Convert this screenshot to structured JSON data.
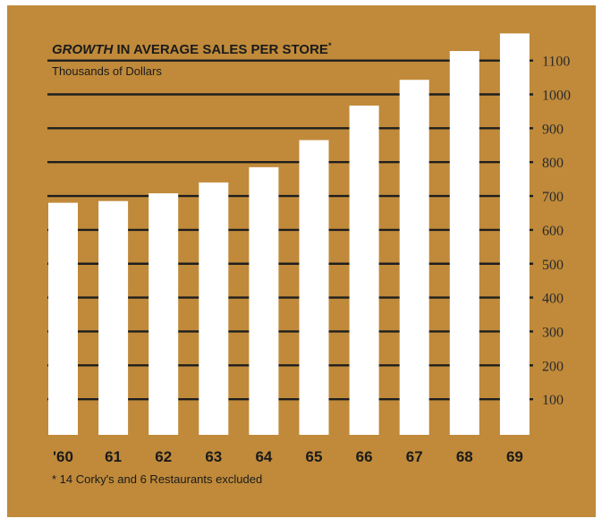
{
  "chart_data": {
    "type": "bar",
    "title_emphasis": "GROWTH",
    "title_rest": " IN AVERAGE SALES PER STORE",
    "title_marker": "*",
    "subtitle": "Thousands of Dollars",
    "footnote": "* 14 Corky's and 6 Restaurants excluded",
    "categories": [
      "'60",
      "61",
      "62",
      "63",
      "64",
      "65",
      "66",
      "67",
      "68",
      "69"
    ],
    "values": [
      680,
      685,
      708,
      740,
      785,
      865,
      967,
      1043,
      1128,
      1180
    ],
    "yticks": [
      100,
      200,
      300,
      400,
      500,
      600,
      700,
      800,
      900,
      1000,
      1100
    ],
    "ylim": [
      0,
      1200
    ],
    "grid": true,
    "colors": {
      "background": "#c08a3a",
      "bars": "#ffffff",
      "gridlines": "#1e1e1e"
    }
  }
}
